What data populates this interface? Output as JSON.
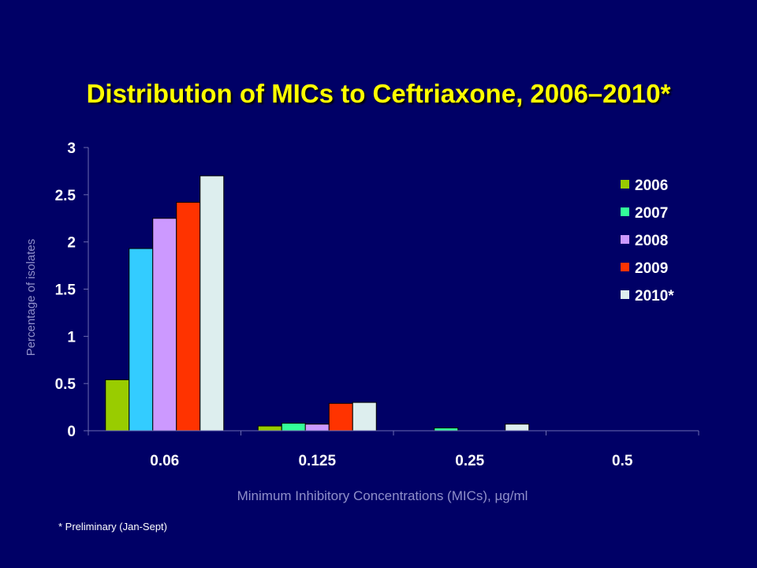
{
  "title": "Distribution of MICs to Ceftriaxone, 2006–2010*",
  "footnote": "* Preliminary (Jan-Sept)",
  "chart_data": {
    "type": "bar",
    "title": "Distribution of MICs to Ceftriaxone, 2006–2010*",
    "xlabel": "Minimum Inhibitory Concentrations (MICs),  µg/ml",
    "ylabel": "Percentage of isolates",
    "categories": [
      "0.06",
      "0.125",
      "0.25",
      "0.5"
    ],
    "ylim": [
      0,
      3
    ],
    "yticks": [
      "0",
      "0.5",
      "1",
      "1.5",
      "2",
      "2.5",
      "3"
    ],
    "grid": false,
    "legend_position": "right",
    "series": [
      {
        "name": "2006",
        "color": "#99cc00",
        "values": [
          0.54,
          0.05,
          0,
          0
        ]
      },
      {
        "name": "2007",
        "color": "#33ccff",
        "legend_color": "#33ff99",
        "bar_colors": [
          "#33ccff",
          "#33ff99",
          "#33ff99",
          "#33ff99"
        ],
        "values": [
          1.93,
          0.08,
          0.03,
          0
        ]
      },
      {
        "name": "2008",
        "color": "#cc99ff",
        "values": [
          2.25,
          0.07,
          0,
          0
        ]
      },
      {
        "name": "2009",
        "color": "#ff3300",
        "values": [
          2.42,
          0.29,
          0,
          0
        ]
      },
      {
        "name": "2010*",
        "color": "#ddeeee",
        "values": [
          2.7,
          0.3,
          0.07,
          0
        ]
      }
    ]
  }
}
